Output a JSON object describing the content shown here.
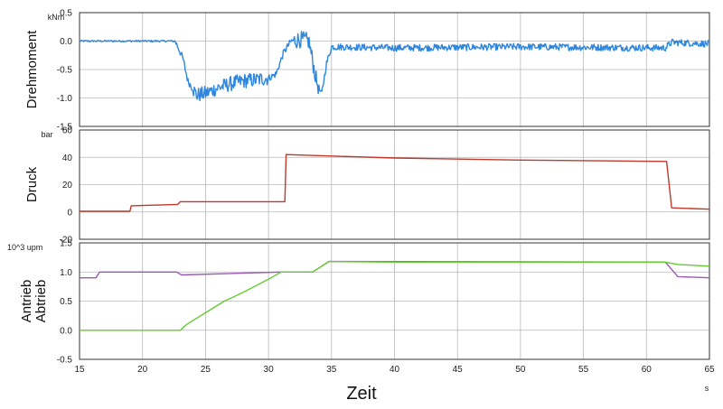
{
  "chart_data": {
    "type": "line",
    "x_axis": {
      "label": "Zeit",
      "unit": "s",
      "range": [
        15,
        65
      ],
      "ticks": [
        15,
        20,
        25,
        30,
        35,
        40,
        45,
        50,
        55,
        60,
        65
      ],
      "grid": true
    },
    "panels": [
      {
        "ylabel": "Drehmoment",
        "unit": "kNm",
        "ylim": [
          -1.5,
          0.5
        ],
        "yticks": [
          -1.5,
          -1.0,
          -0.5,
          0.0,
          0.5
        ],
        "grid": true,
        "series": [
          {
            "color": "#2e86de",
            "noise": 0.06,
            "x": [
              15,
              22.6,
              23.2,
              23.6,
              24.3,
              25,
              26,
              27,
              28,
              29,
              30,
              30.6,
              31.2,
              31.8,
              32.5,
              33.2,
              33.8,
              34.2,
              34.6,
              35,
              40,
              50,
              61.5,
              62,
              65
            ],
            "y": [
              0.0,
              0.0,
              -0.3,
              -0.7,
              -0.95,
              -0.92,
              -0.82,
              -0.75,
              -0.7,
              -0.68,
              -0.65,
              -0.58,
              -0.2,
              0.0,
              0.03,
              0.0,
              -0.7,
              -0.95,
              -0.4,
              -0.1,
              -0.12,
              -0.1,
              -0.12,
              -0.02,
              -0.05
            ]
          }
        ]
      },
      {
        "ylabel": "Druck",
        "unit": "bar",
        "ylim": [
          -20,
          60
        ],
        "yticks": [
          -20,
          0,
          20,
          40,
          60
        ],
        "grid": true,
        "series": [
          {
            "color": "#c0392b",
            "noise": 0,
            "x": [
              15,
              19,
              19.1,
              22.8,
              23,
              31.3,
              31.4,
              40,
              50,
              61.6,
              62,
              65
            ],
            "y": [
              0.5,
              0.5,
              4.5,
              5.5,
              7.5,
              7.5,
              42,
              39.5,
              38,
              37,
              3,
              2
            ]
          }
        ]
      },
      {
        "ylabel": "Antrieb",
        "ylabel2": "Abtrieb",
        "unit": "10^3 upm",
        "ylim": [
          -0.5,
          1.5
        ],
        "yticks": [
          -0.5,
          0.0,
          0.5,
          1.0,
          1.5
        ],
        "grid": true,
        "series": [
          {
            "color": "#9b59b6",
            "noise": 0,
            "x": [
              15,
              16.3,
              16.6,
              22.7,
              23.1,
              31,
              33.5,
              34.8,
              61.5,
              62.5,
              65
            ],
            "y": [
              0.9,
              0.9,
              1.0,
              1.0,
              0.95,
              1.0,
              1.0,
              1.18,
              1.17,
              0.92,
              0.9
            ]
          },
          {
            "color": "#66cc33",
            "noise": 0,
            "x": [
              15,
              23,
              23.5,
              25,
              26.5,
              28,
              30.2,
              31,
              33.5,
              34.8,
              40,
              50,
              61.5,
              62.5,
              65
            ],
            "y": [
              0.0,
              0.0,
              0.1,
              0.3,
              0.5,
              0.65,
              0.9,
              1.0,
              1.0,
              1.18,
              1.17,
              1.17,
              1.17,
              1.13,
              1.1
            ]
          }
        ]
      }
    ]
  }
}
